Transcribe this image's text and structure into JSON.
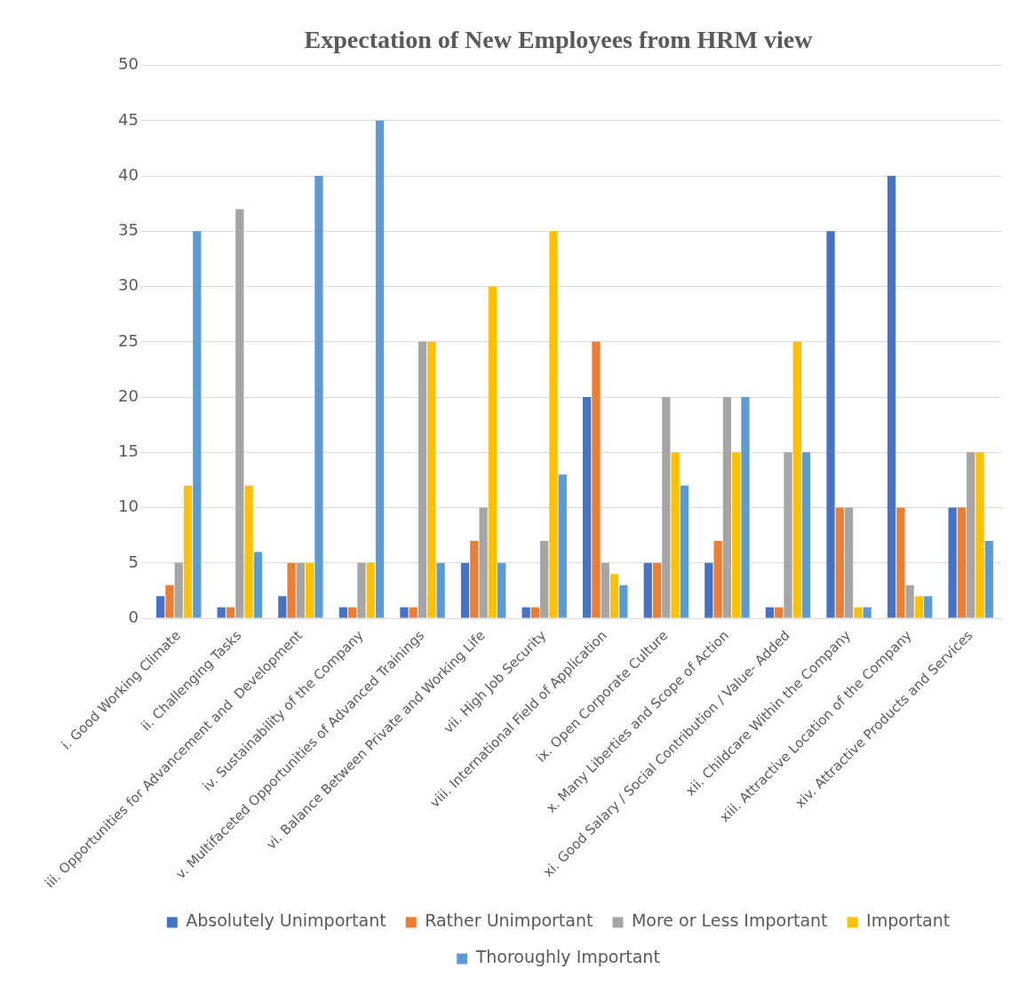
{
  "chart_data": {
    "type": "bar",
    "title": "Expectation of New Employees from HRM view",
    "categories": [
      "i. Good Working Climate",
      "ii. Challenging Tasks",
      "iii. Opportunities for Advancement and  Development",
      "iv. Sustainability of the Company",
      "v. Multifaceted Opportunities of Advanced Trainings",
      "vi. Balance Between Private and Working Life",
      "vii. High Job Security",
      "viii. International Field of Application",
      "ix. Open Corporate Culture",
      "x. Many Liberties and Scope of Action",
      "xi. Good Salary / Social Contribution / Value- Added",
      "xii. Childcare Within the Company",
      "xiii. Attractive Location of the Company",
      "xiv. Attractive Products and Services"
    ],
    "series": [
      {
        "name": "Absolutely Unimportant",
        "color": "#4472c4",
        "values": [
          2,
          1,
          2,
          1,
          1,
          5,
          1,
          20,
          5,
          5,
          1,
          35,
          40,
          10
        ]
      },
      {
        "name": "Rather Unimportant",
        "color": "#ed7d31",
        "values": [
          3,
          1,
          5,
          1,
          1,
          7,
          1,
          25,
          5,
          7,
          1,
          10,
          10,
          10
        ]
      },
      {
        "name": "More or Less Important",
        "color": "#a5a5a5",
        "values": [
          5,
          37,
          5,
          5,
          25,
          10,
          7,
          5,
          20,
          20,
          15,
          10,
          3,
          15
        ]
      },
      {
        "name": "Important",
        "color": "#ffc000",
        "values": [
          12,
          12,
          5,
          5,
          25,
          30,
          35,
          4,
          15,
          15,
          25,
          1,
          2,
          15
        ]
      },
      {
        "name": "Thoroughly Important",
        "color": "#5b9bd5",
        "values": [
          35,
          6,
          40,
          45,
          5,
          5,
          13,
          3,
          12,
          20,
          15,
          1,
          2,
          7
        ]
      }
    ],
    "ylim": [
      0,
      50
    ],
    "yticks": [
      0,
      5,
      10,
      15,
      20,
      25,
      30,
      35,
      40,
      45,
      50
    ],
    "grid": "y",
    "legend": "bottom"
  }
}
